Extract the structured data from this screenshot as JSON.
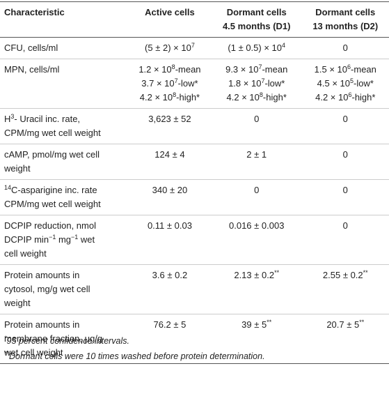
{
  "table": {
    "header": [
      [
        [
          "Characteristic"
        ]
      ],
      [
        [
          "Active cells"
        ]
      ],
      [
        [
          "Dormant cells"
        ],
        [
          "4.5 months (D1)"
        ]
      ],
      [
        [
          "Dormant cells"
        ],
        [
          "13 months (D2)"
        ]
      ]
    ],
    "rows": [
      [
        [
          [
            "CFU, cells/ml"
          ]
        ],
        [
          [
            "(5 ± 2) × 10",
            {
              "sup": "7"
            }
          ]
        ],
        [
          [
            "(1 ± 0.5) × 10",
            {
              "sup": "4"
            }
          ]
        ],
        [
          [
            "0"
          ]
        ]
      ],
      [
        [
          [
            "MPN, cells/ml"
          ]
        ],
        [
          [
            "1.2 × 10",
            {
              "sup": "8"
            },
            "-mean"
          ],
          [
            "3.7 × 10",
            {
              "sup": "7"
            },
            "-low*"
          ],
          [
            "4.2 × 10",
            {
              "sup": "8"
            },
            "-high*"
          ]
        ],
        [
          [
            "9.3 × 10",
            {
              "sup": "7"
            },
            "-mean"
          ],
          [
            "1.8 × 10",
            {
              "sup": "7"
            },
            "-low*"
          ],
          [
            "4.2 × 10",
            {
              "sup": "8"
            },
            "-high*"
          ]
        ],
        [
          [
            "1.5 × 10",
            {
              "sup": "6"
            },
            "-mean"
          ],
          [
            "4.5 × 10",
            {
              "sup": "5"
            },
            "-low*"
          ],
          [
            "4.2 × 10",
            {
              "sup": "6"
            },
            "-high*"
          ]
        ]
      ],
      [
        [
          [
            "H",
            {
              "sup": "3"
            },
            "- Uracil inc. rate,"
          ],
          [
            "CPM/mg wet cell weight"
          ]
        ],
        [
          [
            "3,623 ± 52"
          ]
        ],
        [
          [
            "0"
          ]
        ],
        [
          [
            "0"
          ]
        ]
      ],
      [
        [
          [
            "cAMP, pmol/mg wet cell"
          ],
          [
            "weight"
          ]
        ],
        [
          [
            "124 ± 4"
          ]
        ],
        [
          [
            "2 ± 1"
          ]
        ],
        [
          [
            "0"
          ]
        ]
      ],
      [
        [
          [
            {
              "sup": "14"
            },
            "C-asparigine inc. rate"
          ],
          [
            "CPM/mg wet cell weight"
          ]
        ],
        [
          [
            "340 ± 20"
          ]
        ],
        [
          [
            "0"
          ]
        ],
        [
          [
            "0"
          ]
        ]
      ],
      [
        [
          [
            "DCPIP reduction, nmol"
          ],
          [
            "DCPIP min",
            {
              "sup": "−1"
            },
            " mg",
            {
              "sup": "−1"
            },
            " wet"
          ],
          [
            "cell weight"
          ]
        ],
        [
          [
            "0.11 ± 0.03"
          ]
        ],
        [
          [
            "0.016 ± 0.003"
          ]
        ],
        [
          [
            "0"
          ]
        ]
      ],
      [
        [
          [
            "Protein amounts in"
          ],
          [
            "cytosol, mg/g wet cell"
          ],
          [
            "weight"
          ]
        ],
        [
          [
            "3.6 ± 0.2"
          ]
        ],
        [
          [
            "2.13 ± 0.2",
            {
              "sup": "**"
            }
          ]
        ],
        [
          [
            "2.55 ± 0.2",
            {
              "sup": "**"
            }
          ]
        ]
      ],
      [
        [
          [
            "Protein amounts in"
          ],
          [
            "membrane fraction, μg/g"
          ],
          [
            "wet cell weight"
          ]
        ],
        [
          [
            "76.2 ± 5"
          ]
        ],
        [
          [
            "39 ± 5",
            {
              "sup": "**"
            }
          ]
        ],
        [
          [
            "20.7 ± 5",
            {
              "sup": "**"
            }
          ]
        ]
      ]
    ],
    "footnotes": [
      [
        {
          "sup": "*"
        },
        "95 percent confidence intervals."
      ],
      [
        {
          "sup": "**"
        },
        "Dormant cells were 10 times washed before protein determination."
      ]
    ]
  }
}
